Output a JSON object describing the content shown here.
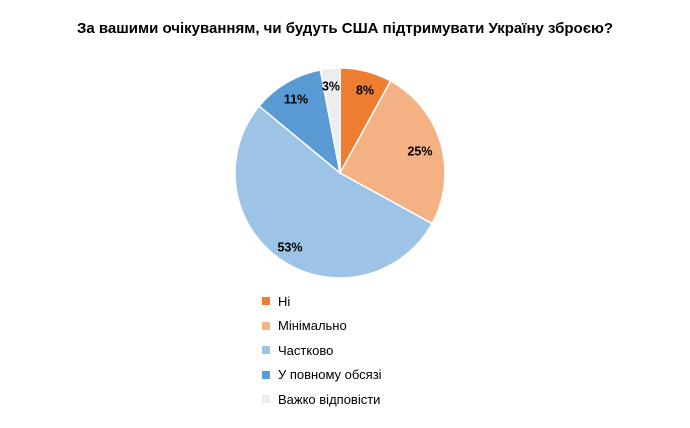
{
  "chart_data": {
    "type": "pie",
    "title": "За вашими очікуванням, чи будуть США підтримувати Україну зброєю?",
    "slices": [
      {
        "label": "Ні",
        "value": 8,
        "display": "8%",
        "color": "#ED7D31"
      },
      {
        "label": "Мінімально",
        "value": 25,
        "display": "25%",
        "color": "#F4B183"
      },
      {
        "label": "Частково",
        "value": 53,
        "display": "53%",
        "color": "#9DC3E6"
      },
      {
        "label": "У повному обсязі",
        "value": 11,
        "display": "11%",
        "color": "#5B9BD5"
      },
      {
        "label": "Важко відповісти",
        "value": 3,
        "display": "3%",
        "color": "#EDEDED"
      }
    ],
    "legend_position": "bottom",
    "start_angle": "12 o'clock",
    "direction": "clockwise"
  }
}
